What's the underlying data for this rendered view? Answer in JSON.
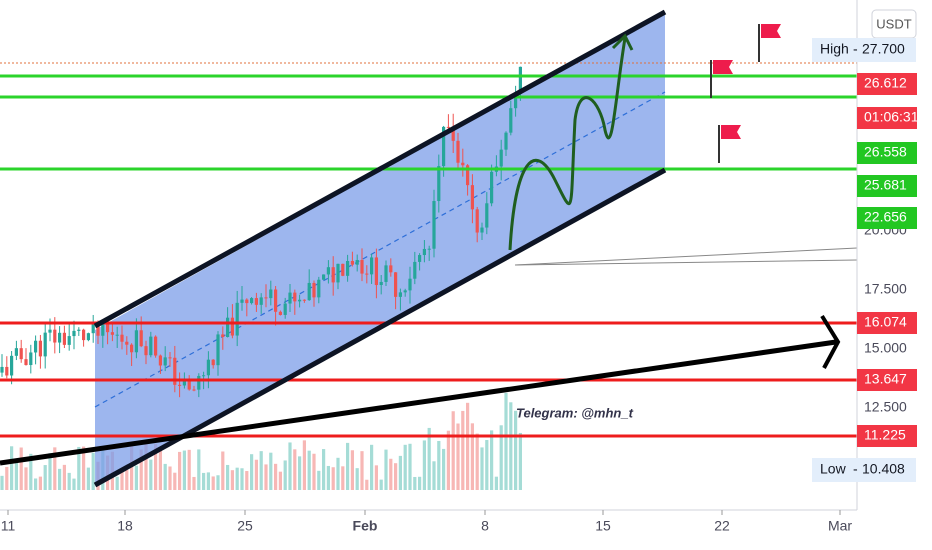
{
  "currency": "USDT",
  "price_axis": [
    "20.000",
    "17.500",
    "15.000",
    "12.500"
  ],
  "high": {
    "label": "High",
    "value": "27.700"
  },
  "low": {
    "label": "Low",
    "value": "10.408"
  },
  "tags": [
    {
      "text": "26.612",
      "kind": "red"
    },
    {
      "text": "01:06:31",
      "kind": "red"
    },
    {
      "text": "26.558",
      "kind": "green"
    },
    {
      "text": "25.681",
      "kind": "green"
    },
    {
      "text": "22.656",
      "kind": "green"
    },
    {
      "text": "16.074",
      "kind": "red"
    },
    {
      "text": "13.647",
      "kind": "red"
    },
    {
      "text": "11.225",
      "kind": "red"
    }
  ],
  "dates": [
    "11",
    "18",
    "25",
    "Feb",
    "8",
    "15",
    "22",
    "Mar"
  ],
  "annotation": "Telegram: @mhn_t"
}
